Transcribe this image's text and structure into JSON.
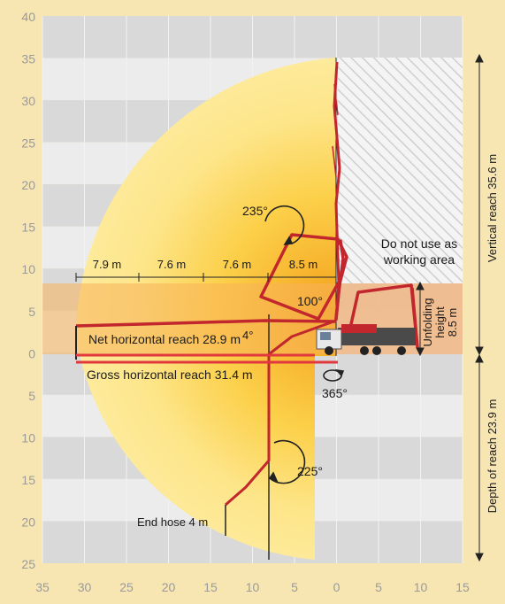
{
  "colors": {
    "background": "#f7e6b2",
    "band_dark": "#d9d9d9",
    "band_light": "#ececec",
    "reach_fill": "#fde58a",
    "reach_core": "#f5a21a",
    "unfold_band": "#f2b980",
    "boom": "#c1272d",
    "hatch": "#c8c8c8"
  },
  "axes": {
    "y_ticks_above": [
      "40",
      "35",
      "30",
      "25",
      "20",
      "15",
      "10",
      "5",
      "0"
    ],
    "y_ticks_below": [
      "5",
      "10",
      "15",
      "20",
      "25"
    ],
    "x_ticks": [
      "35",
      "30",
      "25",
      "20",
      "15",
      "10",
      "5",
      "0",
      "5",
      "10",
      "15"
    ]
  },
  "segments": [
    "7.9 m",
    "7.6 m",
    "7.6 m",
    "8.5 m"
  ],
  "angles": {
    "a235": "235°",
    "a100": "100°",
    "a4": "4°",
    "a365": "365°",
    "a225": "225°"
  },
  "labels": {
    "no_work_line1": "Do not use as",
    "no_work_line2": "working area",
    "net_reach": "Net horizontal reach 28.9 m",
    "gross_reach": "Gross horizontal reach 31.4 m",
    "unfold_line1": "Unfolding",
    "unfold_line2": "height",
    "unfold_line3": "8.5 m",
    "vertical_reach": "Vertical reach 35.6 m",
    "depth_reach": "Depth of reach 23.9 m",
    "end_hose": "End hose 4 m"
  }
}
